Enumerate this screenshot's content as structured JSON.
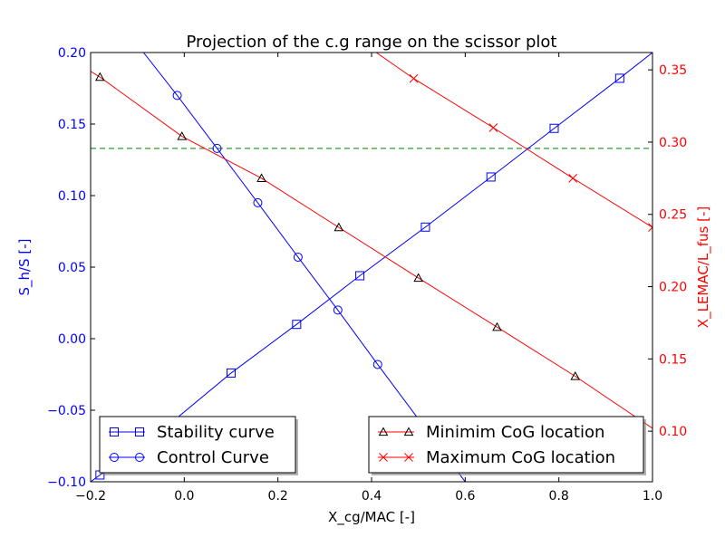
{
  "chart_data": {
    "type": "line",
    "title": "Projection of the c.g range on the scissor plot",
    "xlabel": "X_cg/MAC [-]",
    "ylabel": "S_h/S [-]",
    "ylabel_right": "X_LEMAC/L_fus [-]",
    "xlim": [
      -0.2,
      1.0
    ],
    "ylim": [
      -0.1,
      0.2
    ],
    "ylim_right": [
      0.065,
      0.362
    ],
    "xticks": [
      -0.2,
      0.0,
      0.2,
      0.4,
      0.6,
      0.8,
      1.0
    ],
    "xtick_labels": [
      "−0.2",
      "0.0",
      "0.2",
      "0.4",
      "0.6",
      "0.8",
      "1.0"
    ],
    "yticks": [
      -0.1,
      -0.05,
      0.0,
      0.05,
      0.1,
      0.15,
      0.2
    ],
    "ytick_labels": [
      "−0.10",
      "−0.05",
      "0.00",
      "0.05",
      "0.10",
      "0.15",
      "0.20"
    ],
    "yticks_right": [
      0.1,
      0.15,
      0.2,
      0.25,
      0.3,
      0.35
    ],
    "ytick_labels_right": [
      "0.10",
      "0.15",
      "0.20",
      "0.25",
      "0.30",
      "0.35"
    ],
    "left_axis_color": "#0000ff",
    "right_axis_color": "#ff0000",
    "grid": false,
    "series": [
      {
        "name": "Stability curve",
        "axis": "left",
        "color": "#0000ff",
        "marker": "square",
        "x": [
          -0.2,
          -0.04,
          0.1,
          0.24,
          0.375,
          0.515,
          0.655,
          0.79,
          0.93,
          1.0
        ],
        "y": [
          -0.1,
          -0.062,
          -0.024,
          0.01,
          0.044,
          0.078,
          0.113,
          0.147,
          0.182,
          0.2
        ],
        "marker_x": [
          -0.18,
          0.1,
          0.24,
          0.375,
          0.515,
          0.655,
          0.79,
          0.93
        ]
      },
      {
        "name": "Control Curve",
        "axis": "left",
        "color": "#0000ff",
        "marker": "circle",
        "x": [
          -0.087,
          -0.015,
          0.07,
          0.157,
          0.243,
          0.328,
          0.413,
          0.6
        ],
        "y": [
          0.2,
          0.17,
          0.133,
          0.095,
          0.057,
          0.02,
          -0.018,
          -0.1
        ],
        "marker_x": [
          -0.015,
          0.07,
          0.157,
          0.243,
          0.328,
          0.413
        ]
      },
      {
        "name": "Minimim CoG location",
        "axis": "right",
        "color": "#ff0000",
        "marker_color": "#000000",
        "marker": "triangle",
        "x": [
          -0.2,
          -0.18,
          -0.005,
          0.165,
          0.33,
          0.5,
          0.668,
          0.835,
          1.0
        ],
        "y": [
          0.349,
          0.345,
          0.304,
          0.275,
          0.241,
          0.206,
          0.172,
          0.138,
          0.102
        ],
        "marker_x": [
          -0.18,
          -0.005,
          0.165,
          0.33,
          0.5,
          0.668,
          0.835
        ]
      },
      {
        "name": "Maximum CoG location",
        "axis": "right",
        "color": "#ff0000",
        "marker": "x",
        "x": [
          0.41,
          0.49,
          0.66,
          0.83,
          1.0
        ],
        "y": [
          0.362,
          0.344,
          0.31,
          0.275,
          0.241
        ],
        "marker_x": [
          0.49,
          0.66,
          0.83,
          1.0
        ]
      }
    ],
    "reference_lines": [
      {
        "orientation": "horizontal",
        "axis": "left",
        "y": 0.133,
        "color": "#008000",
        "style": "dashed"
      }
    ],
    "legends": [
      {
        "placement": "lower-left",
        "entries": [
          "Stability curve",
          "Control Curve"
        ]
      },
      {
        "placement": "lower-right",
        "entries": [
          "Minimim CoG location",
          "Maximum CoG location"
        ]
      }
    ]
  }
}
